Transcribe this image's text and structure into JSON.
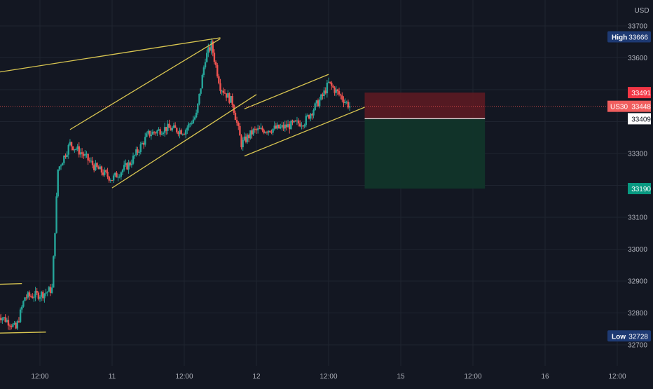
{
  "chart_data": {
    "type": "candlestick",
    "symbol": "US30",
    "currency": "USD",
    "last_price": 33448,
    "session_high": {
      "label": "High",
      "value": 33666
    },
    "session_low": {
      "label": "Low",
      "value": 32728
    },
    "ylim": [
      32670,
      33760
    ],
    "y_ticks": [
      32700,
      32800,
      32900,
      33000,
      33100,
      33200,
      33300,
      33400,
      33500,
      33600,
      33700
    ],
    "x_ticks": [
      "12:00",
      "11",
      "12:00",
      "12",
      "12:00",
      "15",
      "12:00",
      "16",
      "12:00"
    ],
    "x_tick_dates": [
      "2021-06-10 12:00",
      "2021-06-11",
      "2021-06-11 12:00",
      "2021-06-14",
      "2021-06-14 12:00",
      "2021-06-15",
      "2021-06-15 12:00",
      "2021-06-16",
      "2021-06-16 12:00"
    ],
    "price_path": [
      [
        "2021-06-10 05:00",
        32795
      ],
      [
        "2021-06-10 07:00",
        32770
      ],
      [
        "2021-06-10 08:00",
        32750
      ],
      [
        "2021-06-10 09:30",
        32850
      ],
      [
        "2021-06-10 11:00",
        32855
      ],
      [
        "2021-06-10 12:30",
        32860
      ],
      [
        "2021-06-10 14:00",
        32875
      ],
      [
        "2021-06-10 15:00",
        33250
      ],
      [
        "2021-06-10 17:00",
        33330
      ],
      [
        "2021-06-10 19:00",
        33300
      ],
      [
        "2021-06-10 21:00",
        33260
      ],
      [
        "2021-06-11 00:00",
        33220
      ],
      [
        "2021-06-11 03:00",
        33270
      ],
      [
        "2021-06-11 06:00",
        33360
      ],
      [
        "2021-06-11 09:00",
        33380
      ],
      [
        "2021-06-11 12:00",
        33370
      ],
      [
        "2021-06-11 14:00",
        33420
      ],
      [
        "2021-06-11 15:30",
        33600
      ],
      [
        "2021-06-11 16:30",
        33640
      ],
      [
        "2021-06-11 18:00",
        33510
      ],
      [
        "2021-06-11 20:00",
        33460
      ],
      [
        "2021-06-11 21:30",
        33330
      ],
      [
        "2021-06-11 23:30",
        33370
      ],
      [
        "2021-06-14 04:00",
        33380
      ],
      [
        "2021-06-14 08:00",
        33400
      ],
      [
        "2021-06-14 11:00",
        33480
      ],
      [
        "2021-06-14 12:00",
        33520
      ],
      [
        "2021-06-14 14:00",
        33480
      ],
      [
        "2021-06-14 15:30",
        33448
      ]
    ],
    "trendlines": [
      {
        "from": [
          "2021-06-09 12:00",
          33505
        ],
        "to": [
          "2021-06-11 18:00",
          33663
        ]
      },
      {
        "from": [
          "2021-06-10 17:00",
          33375
        ],
        "to": [
          "2021-06-11 18:00",
          33660
        ]
      },
      {
        "from": [
          "2021-06-11 00:00",
          33192
        ],
        "to": [
          "2021-06-12 00:00",
          33485
        ]
      },
      {
        "from": [
          "2021-06-11 22:00",
          33440
        ],
        "to": [
          "2021-06-14 12:00",
          33548
        ]
      },
      {
        "from": [
          "2021-06-11 22:00",
          33292
        ],
        "to": [
          "2021-06-14 18:00",
          33445
        ]
      },
      {
        "from": [
          "2021-06-09 12:00",
          32880
        ],
        "to": [
          "2021-06-10 09:00",
          32892
        ]
      },
      {
        "from": [
          "2021-06-09 12:00",
          32730
        ],
        "to": [
          "2021-06-10 13:00",
          32740
        ]
      }
    ],
    "position": {
      "start": "2021-06-14 18:00",
      "end": "2021-06-15 14:00",
      "stop": 33491,
      "entry": 33409,
      "target": 33190
    },
    "price_labels": [
      {
        "label": "",
        "value": 33491,
        "color": "#f23645",
        "text_color": "#ffffff"
      },
      {
        "label": "US30",
        "value": 33448,
        "color": "#f05e5e",
        "text_color": "#ffffff"
      },
      {
        "label": "",
        "value": 33409,
        "color": "#ffffff",
        "text_color": "#131722"
      },
      {
        "label": "",
        "value": 33190,
        "color": "#089981",
        "text_color": "#ffffff"
      }
    ],
    "colors": {
      "background": "#131722",
      "grid": "#1f2430",
      "axis_text": "#b2b5be",
      "up": "#26a69a",
      "down": "#ef5350",
      "trendline": "#d9c651",
      "stop_zone": "#5c1a22",
      "target_zone": "#11352a",
      "high_low_badge": "#1e3a73"
    }
  }
}
